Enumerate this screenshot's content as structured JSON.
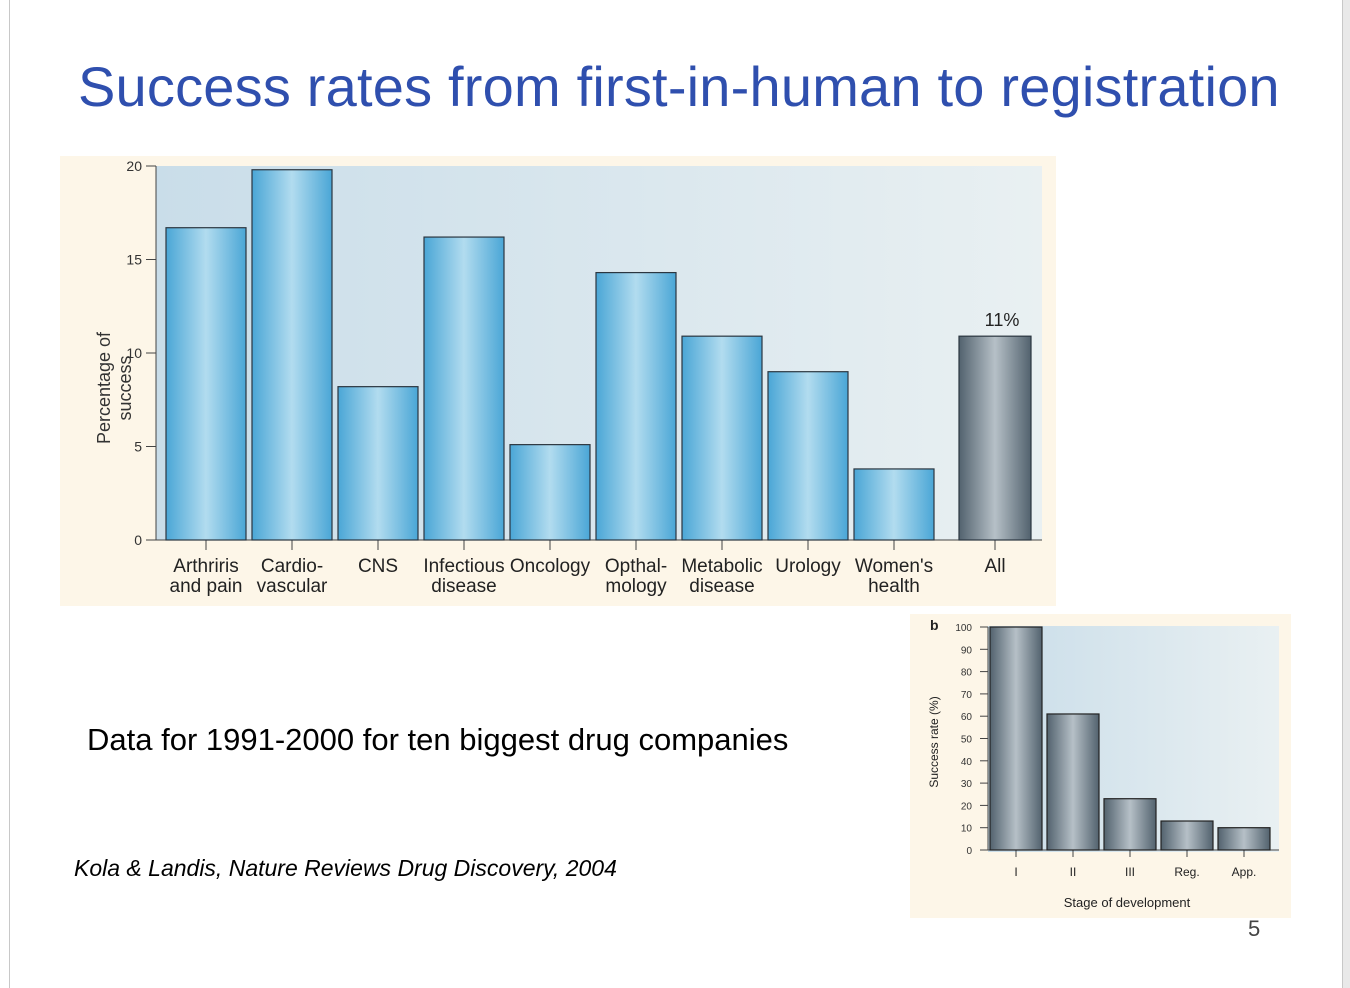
{
  "slide": {
    "title": "Success rates from first-in-human to registration",
    "caption": "Data for 1991-2000 for ten biggest drug companies",
    "citation": "Kola & Landis, Nature Reviews Drug Discovery, 2004",
    "page_number": "5"
  },
  "colors": {
    "title": "#2f4fae",
    "panel_bg": "#fdf6e8",
    "plot_bg_left": "#c9dde9",
    "plot_bg_right": "#e9f0f2",
    "bar_blue": "#4aa6d6",
    "bar_blue_light": "#b2dcef",
    "bar_gray": "#52626e",
    "bar_gray_light": "#b6c0c7"
  },
  "chart_data": [
    {
      "type": "bar",
      "title": "",
      "ylabel": "Percentage of success",
      "xlabel": "",
      "ylim": [
        0,
        20
      ],
      "yticks": [
        "0",
        "5",
        "10",
        "15",
        "20"
      ],
      "categories": [
        [
          "Arthriris",
          "and pain"
        ],
        [
          "Cardio-",
          "vascular"
        ],
        [
          "CNS"
        ],
        [
          "Infectious",
          "disease"
        ],
        [
          "Oncology"
        ],
        [
          "Opthal-",
          "mology"
        ],
        [
          "Metabolic",
          "disease"
        ],
        [
          "Urology"
        ],
        [
          "Women's",
          "health"
        ],
        [
          "All"
        ]
      ],
      "values": [
        16.7,
        19.8,
        8.2,
        16.2,
        5.1,
        14.3,
        10.9,
        9.0,
        3.8,
        10.9
      ],
      "highlight": [
        false,
        false,
        false,
        false,
        false,
        false,
        false,
        false,
        false,
        true
      ],
      "data_labels": {
        "9": "11%"
      }
    },
    {
      "type": "bar",
      "panel_label": "b",
      "ylabel": "Success rate (%)",
      "xlabel": "Stage of development",
      "ylim": [
        0,
        100
      ],
      "yticks": [
        "0",
        "10",
        "20",
        "30",
        "40",
        "50",
        "60",
        "70",
        "80",
        "90",
        "100"
      ],
      "categories": [
        "I",
        "II",
        "III",
        "Reg.",
        "App."
      ],
      "values": [
        100,
        61,
        23,
        13,
        10
      ]
    }
  ]
}
